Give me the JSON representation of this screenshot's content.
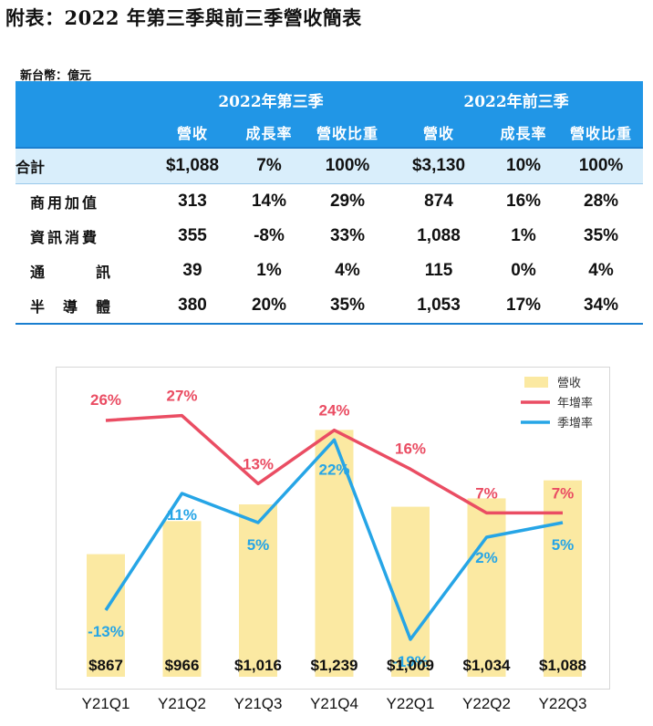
{
  "title": "附表：2022 年第三季與前三季營收簡表",
  "unit": "新台幣：億元",
  "table": {
    "group_headers": [
      "2022年第三季",
      "2022年前三季"
    ],
    "column_headers": [
      "營收",
      "成長率",
      "營收比重",
      "營收",
      "成長率",
      "營收比重"
    ],
    "rows": [
      {
        "label": "合計",
        "cells": [
          "$1,088",
          "7%",
          "100%",
          "$3,130",
          "10%",
          "100%"
        ]
      },
      {
        "label": "商用加值",
        "cells": [
          "313",
          "14%",
          "29%",
          "874",
          "16%",
          "28%"
        ]
      },
      {
        "label": "資訊消費",
        "cells": [
          "355",
          "-8%",
          "33%",
          "1,088",
          "1%",
          "35%"
        ]
      },
      {
        "label": "通訊",
        "cells": [
          "39",
          "1%",
          "4%",
          "115",
          "0%",
          "4%"
        ]
      },
      {
        "label": "半導體",
        "cells": [
          "380",
          "20%",
          "35%",
          "1,053",
          "17%",
          "34%"
        ]
      }
    ]
  },
  "chart_data": {
    "type": "bar",
    "categories": [
      "Y21Q1",
      "Y21Q2",
      "Y21Q3",
      "Y21Q4",
      "Y22Q1",
      "Y22Q2",
      "Y22Q3"
    ],
    "series": [
      {
        "name": "營收",
        "type": "bar",
        "values": [
          867,
          966,
          1016,
          1239,
          1009,
          1034,
          1088
        ],
        "labels": [
          "$867",
          "$966",
          "$1,016",
          "$1,239",
          "$1,009",
          "$1,034",
          "$1,088"
        ],
        "color": "#fbe9a2"
      },
      {
        "name": "年增率",
        "type": "line",
        "values": [
          26,
          27,
          13,
          24,
          16,
          7,
          7
        ],
        "labels": [
          "26%",
          "27%",
          "13%",
          "24%",
          "16%",
          "7%",
          "7%"
        ],
        "color": "#ea4d63"
      },
      {
        "name": "季增率",
        "type": "line",
        "values": [
          -13,
          11,
          5,
          22,
          -19,
          2,
          5
        ],
        "labels": [
          "-13%",
          "11%",
          "5%",
          "22%",
          "-19%",
          "2%",
          "5%"
        ],
        "color": "#26a5e6"
      }
    ],
    "bar_axis_range": [
      500,
      1300
    ],
    "line_axis_range": [
      -25,
      35
    ],
    "legend": "top-right",
    "grid": false
  }
}
